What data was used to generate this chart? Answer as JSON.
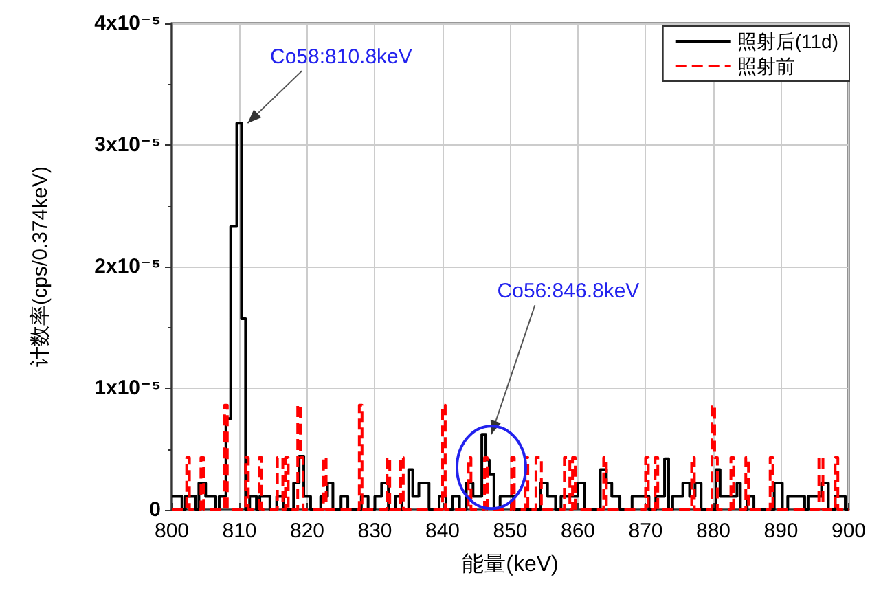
{
  "chart_data": {
    "type": "step",
    "xlabel": "能量(keV)",
    "ylabel": "计数率(cps/0.374keV)",
    "xlim": [
      800,
      900
    ],
    "xticks": [
      800,
      810,
      820,
      830,
      840,
      850,
      860,
      870,
      880,
      890,
      900
    ],
    "ylim": [
      0,
      4e-05
    ],
    "yticks": [
      0,
      {
        "value": 1e-05,
        "label": "1x10⁻⁵"
      },
      {
        "value": 2e-05,
        "label": "2x10⁻⁵"
      },
      {
        "value": 3e-05,
        "label": "3x10⁻⁵"
      },
      {
        "value": 4e-05,
        "label": "4x10⁻⁵"
      }
    ],
    "grid": true,
    "legend": "top right",
    "marker": "none",
    "annotations": [
      {
        "text": "Co58:810.8keV",
        "x": 810.8,
        "y": 3.18e-05
      },
      {
        "text": "Co56:846.8keV",
        "x": 846.8,
        "y": 6.2e-06
      }
    ],
    "series": [
      {
        "name": "照射后(11d)",
        "color": "#000000",
        "line_style": "solid",
        "x": [
          800,
          801.5,
          802,
          803.5,
          804,
          805,
          806.5,
          807,
          808,
          808.7,
          809.6,
          810.3,
          810.9,
          811.5,
          812.5,
          813,
          814.5,
          815.5,
          816.5,
          818,
          818.8,
          819.5,
          820.5,
          822,
          823,
          823.8,
          825,
          826,
          828,
          829,
          830,
          831,
          832,
          833,
          834,
          835,
          835.6,
          836.5,
          838,
          839.5,
          840.5,
          841.5,
          842.5,
          843.5,
          844.5,
          845.8,
          846.4,
          846.9,
          847.6,
          848.5,
          849.8,
          850.5,
          854.5,
          855.5,
          856.7,
          857.5,
          860,
          861,
          863.3,
          864.2,
          865,
          866.2,
          868,
          870.5,
          871.5,
          872.8,
          873.4,
          874,
          875.5,
          876.5,
          877.3,
          878.2,
          880.4,
          881,
          882,
          883.5,
          884,
          885,
          886,
          889,
          890.2,
          891,
          892,
          893.5,
          894,
          896,
          897,
          898,
          899.5,
          900
        ],
        "values": [
          1.1e-06,
          0,
          1.1e-06,
          0,
          2.2e-06,
          1.1e-06,
          0,
          1.1e-06,
          7.5e-06,
          2.33e-05,
          3.18e-05,
          1.57e-05,
          0,
          1.1e-06,
          0,
          1.1e-06,
          0,
          1.1e-06,
          0,
          2.2e-06,
          4.4e-06,
          1.1e-06,
          0,
          1.1e-06,
          2.2e-06,
          0,
          1.1e-06,
          0,
          1.1e-06,
          0,
          1.1e-06,
          2.2e-06,
          0,
          1.1e-06,
          0,
          3.3e-06,
          1.1e-06,
          2.2e-06,
          0,
          1.1e-06,
          0,
          1.1e-06,
          0,
          2.2e-06,
          1.1e-06,
          6.2e-06,
          4.1e-06,
          2.9e-06,
          0,
          1.1e-06,
          1.1e-06,
          0,
          2.2e-06,
          1.1e-06,
          0,
          1.1e-06,
          2.2e-06,
          0,
          3.3e-06,
          2.2e-06,
          1.1e-06,
          0,
          1.1e-06,
          0,
          1.1e-06,
          4.2e-06,
          0,
          1.1e-06,
          2.2e-06,
          1.1e-06,
          2.2e-06,
          0,
          3.3e-06,
          1.1e-06,
          1.1e-06,
          2.2e-06,
          0,
          1.1e-06,
          0,
          2.2e-06,
          0,
          1.1e-06,
          1.1e-06,
          0,
          1.1e-06,
          2.2e-06,
          0,
          1.1e-06,
          0,
          0
        ]
      },
      {
        "name": "照射前",
        "color": "#ff0000",
        "line_style": "dashed",
        "x": [
          800,
          802.2,
          802.6,
          804.3,
          804.7,
          807.8,
          808.2,
          810.9,
          811.3,
          812.9,
          813.3,
          815.6,
          816.4,
          816.8,
          817.2,
          818.6,
          819,
          819.4,
          822.4,
          822.8,
          827.7,
          828.1,
          831.8,
          832.2,
          833.8,
          834.2,
          840,
          840.4,
          843.8,
          844.2,
          846.2,
          846.6,
          850.2,
          850.6,
          852.2,
          852.6,
          853.8,
          854.6,
          858,
          858.8,
          859.2,
          859.6,
          863.8,
          864.2,
          870,
          870.4,
          871.4,
          871.8,
          876.8,
          877.2,
          879.8,
          880.2,
          880.6,
          882.6,
          883,
          884.8,
          885.2,
          888.4,
          888.8,
          895.6,
          896.2,
          898,
          898.4,
          900
        ],
        "values": [
          0,
          4.3e-06,
          0,
          4.3e-06,
          0,
          8.6e-06,
          0,
          4.3e-06,
          0,
          4.3e-06,
          0,
          4.3e-06,
          0,
          4.3e-06,
          0,
          8.6e-06,
          4.3e-06,
          0,
          4.3e-06,
          0,
          8.6e-06,
          0,
          4.3e-06,
          0,
          4.3e-06,
          0,
          8.6e-06,
          0,
          4.3e-06,
          0,
          4.3e-06,
          0,
          4.3e-06,
          0,
          4.3e-06,
          0,
          4.3e-06,
          0,
          4.3e-06,
          0,
          4.3e-06,
          0,
          4.3e-06,
          0,
          4.3e-06,
          0,
          4.3e-06,
          0,
          4.3e-06,
          0,
          8.6e-06,
          4.3e-06,
          0,
          4.3e-06,
          0,
          4.3e-06,
          0,
          4.3e-06,
          0,
          4.3e-06,
          0,
          4.3e-06,
          0,
          0
        ]
      }
    ]
  }
}
